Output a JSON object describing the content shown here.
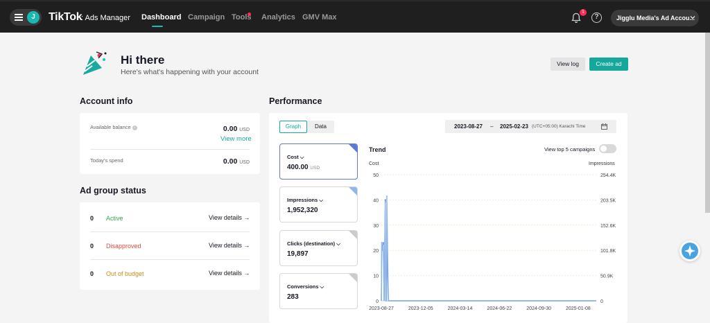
{
  "navbar": {
    "avatar_initial": "J",
    "brand": "TikTok",
    "brand_sub": ": Ads Manager",
    "tabs": [
      {
        "label": "Dashboard"
      },
      {
        "label": "Campaign"
      },
      {
        "label": "Tools"
      },
      {
        "label": "Analytics"
      },
      {
        "label": "GMV Max"
      }
    ],
    "notification_count": "1",
    "help_glyph": "?",
    "account_label": "Jigglu Media's Ad Accou..."
  },
  "hero": {
    "title": "Hi there",
    "subtitle": "Here's what's happening with your account",
    "view_log_label": "View log",
    "create_ad_label": "Create ad"
  },
  "account_info": {
    "title": "Account info",
    "available_balance_label": "Available balance",
    "available_balance_value": "0.00",
    "currency": "USD",
    "view_more_label": "View more",
    "todays_spend_label": "Today's spend",
    "todays_spend_value": "0.00"
  },
  "ad_group_status": {
    "title": "Ad group status",
    "rows": [
      {
        "count": "0",
        "status": "Active",
        "color": "#3aa757",
        "details_label": "View details →"
      },
      {
        "count": "0",
        "status": "Disapproved",
        "color": "#e0493b",
        "details_label": "View details →"
      },
      {
        "count": "0",
        "status": "Out of budget",
        "color": "#c98a14",
        "details_label": "View details →"
      }
    ]
  },
  "performance": {
    "title": "Performance",
    "graph_tab": "Graph",
    "data_tab": "Data",
    "date_start": "2023-08-27",
    "date_sep": "–",
    "date_end": "2025-02-23",
    "timezone": "(UTC+05:00) Karachi Time",
    "metrics": [
      {
        "label": "Cost",
        "value": "400.00",
        "unit": "USD",
        "corner_color": "#5b7bd6"
      },
      {
        "label": "Impressions",
        "value": "1,952,320",
        "unit": "",
        "corner_color": "#8fb8e8"
      },
      {
        "label": "Clicks (destination)",
        "value": "19,897",
        "unit": "",
        "corner_color": "#cccccc"
      },
      {
        "label": "Conversions",
        "value": "283",
        "unit": "",
        "corner_color": "#cccccc"
      }
    ],
    "trend_title": "Trend",
    "top5_label": "View top 5 campaigns",
    "left_axis_title": "Cost",
    "right_axis_title": "Impressions"
  },
  "chart_data": {
    "type": "line",
    "x_ticks": [
      "2023-08-27",
      "2023-12-05",
      "2024-03-14",
      "2024-06-22",
      "2024-09-30",
      "2025-01-08"
    ],
    "y_left_ticks": [
      "0",
      "10",
      "20",
      "30",
      "40",
      "50"
    ],
    "y_right_ticks": [
      "0",
      "50.9K",
      "101.8K",
      "152.6K",
      "203.5K",
      "254.4K"
    ],
    "ylim_left": [
      0,
      50
    ],
    "ylim_right": [
      0,
      254400
    ],
    "grid": true,
    "series": [
      {
        "name": "Cost",
        "axis": "left",
        "color": "#5b7bd6",
        "x": [
          "2023-08-27",
          "2023-08-28",
          "2023-08-30",
          "2023-09-01",
          "2023-09-03",
          "2023-09-06",
          "2023-09-07",
          "2023-09-09",
          "2023-09-10",
          "2023-09-14",
          "2023-09-15",
          "2023-09-20",
          "2025-02-23"
        ],
        "y": [
          0,
          23,
          20,
          23,
          0,
          40,
          0,
          0,
          23,
          0,
          0,
          0,
          0
        ]
      },
      {
        "name": "Impressions",
        "axis": "right",
        "color": "#8fb8e8",
        "x": [
          "2023-08-27",
          "2023-08-28",
          "2023-08-30",
          "2023-09-01",
          "2023-09-03",
          "2023-09-06",
          "2023-09-07",
          "2023-09-09",
          "2023-09-10",
          "2023-09-14",
          "2023-09-15",
          "2023-09-20",
          "2025-02-23"
        ],
        "y": [
          0,
          117000,
          102000,
          112000,
          0,
          198000,
          0,
          0,
          211000,
          0,
          0,
          0,
          0
        ]
      }
    ]
  }
}
